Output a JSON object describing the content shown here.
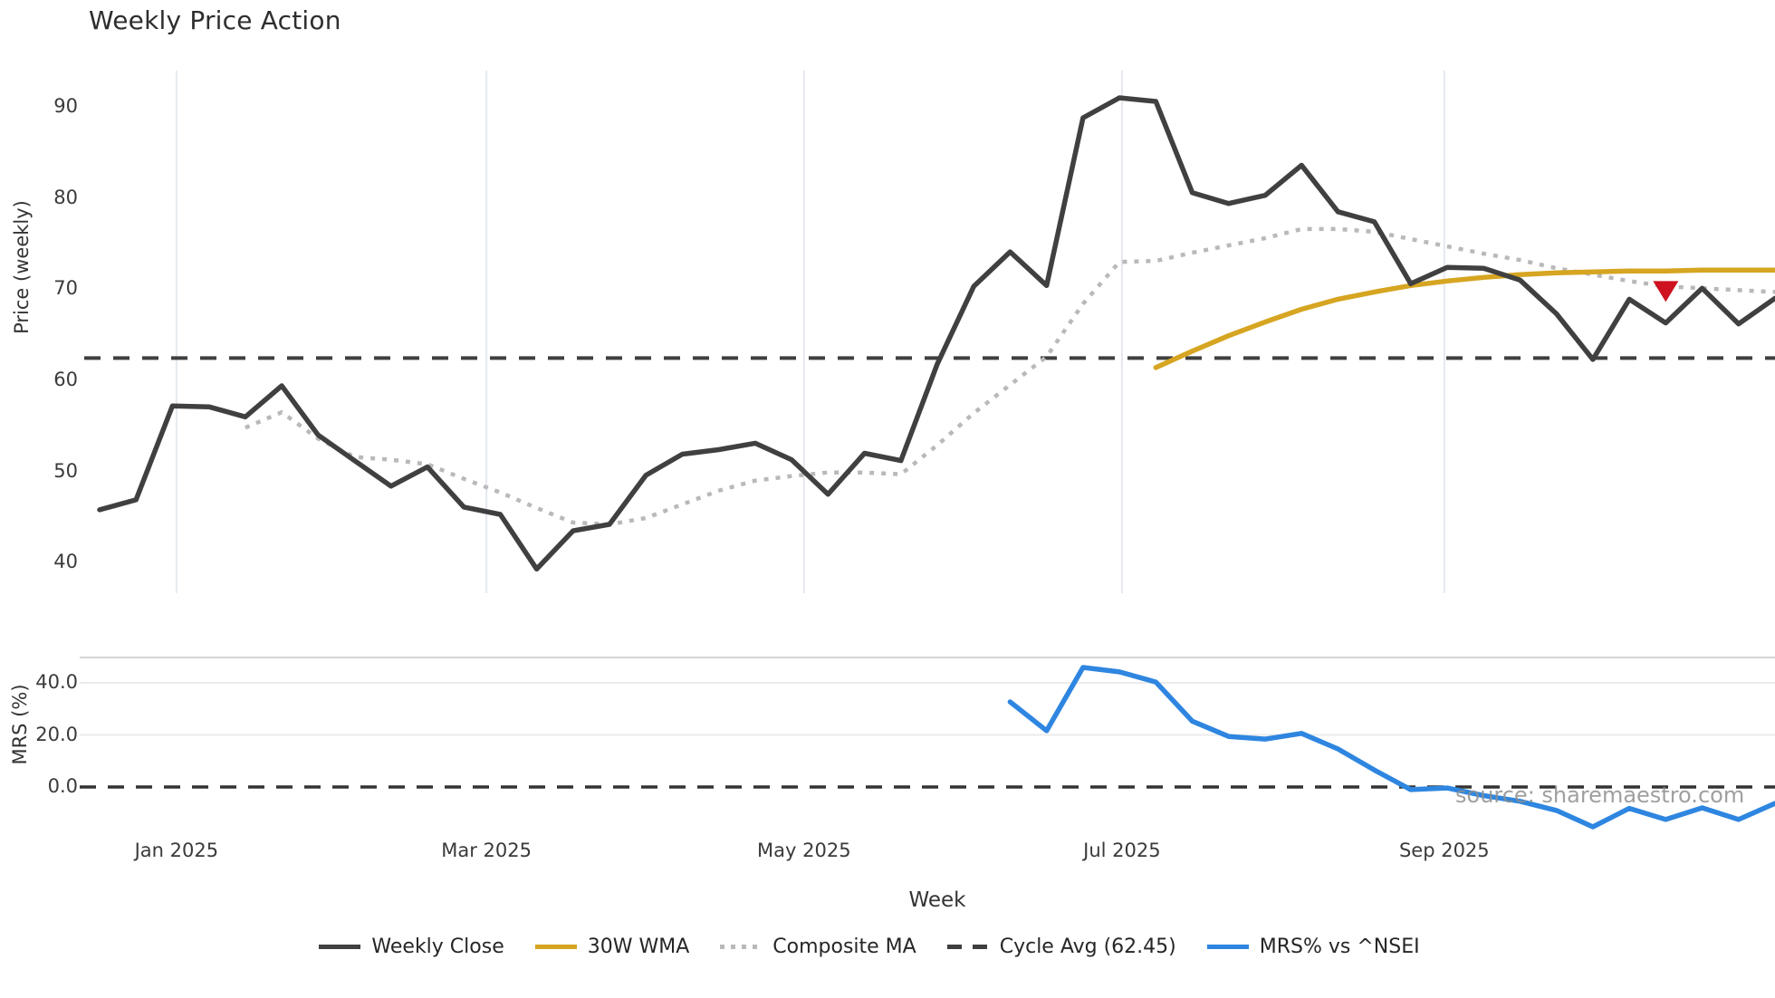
{
  "page": {
    "background": "#ffffff"
  },
  "header": {
    "title": "Weekly Price Action"
  },
  "source_note": "source: sharemaestro.com",
  "legend": {
    "items": [
      {
        "label": "Weekly Close",
        "color": "#404040",
        "style": "solid"
      },
      {
        "label": "30W WMA",
        "color": "#d6a521",
        "style": "solid"
      },
      {
        "label": "Composite MA",
        "color": "#b9b9b9",
        "style": "dotted"
      },
      {
        "label": "Cycle Avg (62.45)",
        "color": "#3f3f3f",
        "style": "dashed"
      },
      {
        "label": "MRS% vs ^NSEI",
        "color": "#2e86e0",
        "style": "solid"
      }
    ]
  },
  "colors": {
    "weekly_close": "#404040",
    "wma_30w": "#d6a521",
    "composite_ma": "#b9b9b9",
    "cycle_avg": "#3f3f3f",
    "mrs": "#2e86e0",
    "marker_red": "#ce121f",
    "grid_vertical": "#e4e9ee",
    "grid_horizontal": "#ececec",
    "subplot_border": "#d4d4d4"
  },
  "chart_data": [
    {
      "type": "line",
      "title": "Weekly Price Action",
      "xlabel": "Week",
      "ylabel": "Price (weekly)",
      "x_unit": "week",
      "n_weeks": 47,
      "x_ticklabels": [
        "Jan 2025",
        "Mar 2025",
        "May 2025",
        "Jul 2025",
        "Sep 2025"
      ],
      "month_tick_indices": [
        2.11,
        10.62,
        19.34,
        28.07,
        36.92
      ],
      "y_ticks": [
        90,
        80,
        70,
        60,
        50,
        40
      ],
      "ylim": [
        36,
        93
      ],
      "grid": "vertical-only",
      "cycle_avg": 62.45,
      "series": [
        {
          "name": "Weekly Close",
          "style": "solid",
          "start_index": 0,
          "values": [
            45.8,
            46.9,
            57.2,
            57.1,
            56.0,
            59.4,
            54.0,
            51.2,
            48.4,
            50.5,
            46.1,
            45.3,
            39.3,
            43.5,
            44.2,
            49.6,
            51.9,
            52.4,
            53.1,
            51.3,
            47.5,
            52.0,
            51.2,
            61.8,
            70.3,
            74.1,
            70.4,
            88.8,
            91.0,
            90.6,
            80.6,
            79.4,
            80.3,
            83.6,
            78.5,
            77.4,
            70.6,
            72.4,
            72.3,
            71.0,
            67.3,
            62.3,
            68.9,
            66.3,
            70.1,
            66.2,
            69.0
          ]
        },
        {
          "name": "Composite MA",
          "style": "dotted",
          "start_index": 4,
          "values": [
            54.8,
            56.5,
            53.6,
            51.6,
            51.3,
            50.8,
            49.2,
            47.7,
            46.0,
            44.4,
            44.2,
            44.9,
            46.4,
            47.9,
            49.0,
            49.5,
            49.9,
            49.9,
            49.7,
            52.9,
            56.4,
            59.5,
            62.6,
            68.4,
            73.0,
            73.1,
            74.0,
            74.8,
            75.6,
            76.6,
            76.6,
            76.3,
            75.5,
            74.7,
            73.9,
            73.2,
            72.3,
            71.6,
            70.9,
            70.3,
            70.1,
            69.9,
            69.7
          ]
        },
        {
          "name": "30W WMA",
          "style": "solid",
          "start_index": 29,
          "values": [
            61.4,
            63.2,
            64.9,
            66.4,
            67.8,
            68.9,
            69.7,
            70.4,
            70.9,
            71.3,
            71.6,
            71.8,
            71.9,
            72.0,
            72.0,
            72.1,
            72.1,
            72.1
          ]
        },
        {
          "name": "Cycle Avg",
          "style": "dashed",
          "constant": 62.45
        }
      ],
      "marker": {
        "name": "sell-signal-triangle",
        "shape": "triangle-down",
        "x_index": 43,
        "price": 69.8
      }
    },
    {
      "type": "line",
      "ylabel": "MRS (%)",
      "y_ticks": [
        "40.0",
        "20.0",
        "0.0"
      ],
      "y_tick_values": [
        40,
        20,
        0
      ],
      "zero_line": "dashed",
      "series": [
        {
          "name": "MRS% vs ^NSEI",
          "style": "solid",
          "start_index": 25,
          "values": [
            32.7,
            21.6,
            45.9,
            44.2,
            40.3,
            25.3,
            19.4,
            18.4,
            20.6,
            14.6,
            6.5,
            -1.0,
            -0.4,
            -3.3,
            -5.5,
            -9.0,
            -15.3,
            -8.2,
            -12.5,
            -8.0,
            -12.5,
            -6.3
          ]
        }
      ]
    }
  ]
}
